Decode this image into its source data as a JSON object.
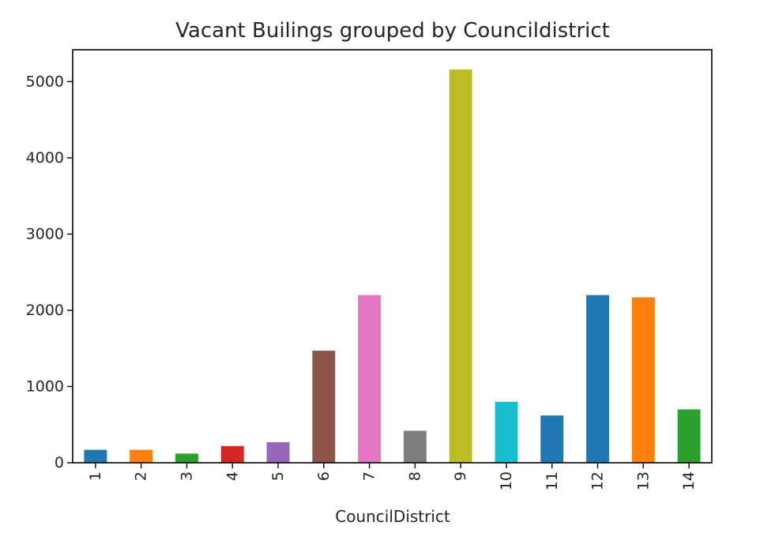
{
  "chart_data": {
    "type": "bar",
    "title": "Vacant Builings grouped by Councildistrict",
    "xlabel": "CouncilDistrict",
    "ylabel": "",
    "categories": [
      "1",
      "2",
      "3",
      "4",
      "5",
      "6",
      "7",
      "8",
      "9",
      "10",
      "11",
      "12",
      "13",
      "14"
    ],
    "values": [
      170,
      170,
      120,
      220,
      270,
      1470,
      2200,
      420,
      5160,
      800,
      620,
      2200,
      2170,
      700
    ],
    "bar_colors": [
      "#1f77b4",
      "#ff7f0e",
      "#2ca02c",
      "#d62728",
      "#9467bd",
      "#8c564b",
      "#e377c2",
      "#7f7f7f",
      "#bcbd22",
      "#17becf",
      "#1f77b4",
      "#1f77b4",
      "#ff7f0e",
      "#2ca02c"
    ],
    "yticks": [
      0,
      1000,
      2000,
      3000,
      4000,
      5000
    ],
    "ylim": [
      0,
      5418
    ],
    "grid": false,
    "legend": "none",
    "axis_color": "#000000",
    "text_color": "#262626"
  }
}
